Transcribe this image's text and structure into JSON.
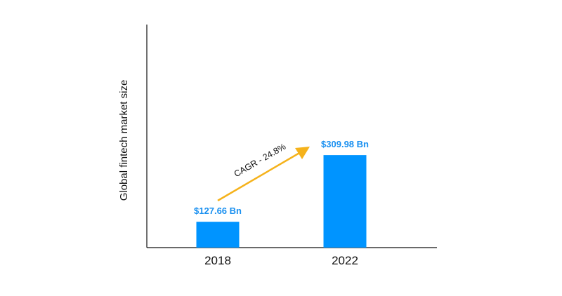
{
  "chart_data": {
    "type": "bar",
    "title": "",
    "xlabel": "",
    "ylabel": "Global fintech market size",
    "categories": [
      "2018",
      "2022"
    ],
    "values": [
      127.66,
      309.98
    ],
    "data_labels": [
      "$127.66 Bn",
      "$309.98 Bn"
    ],
    "units": "USD Bn",
    "ylim": [
      57,
      667
    ],
    "grid": false,
    "annotation": {
      "text": "CAGR - 24.8%",
      "type": "arrow",
      "from": "2018",
      "to": "2022"
    },
    "colors": {
      "bar": "#0094ff",
      "label": "#1a90f0",
      "arrow": "#f5b21b",
      "axis": "#111111"
    }
  }
}
